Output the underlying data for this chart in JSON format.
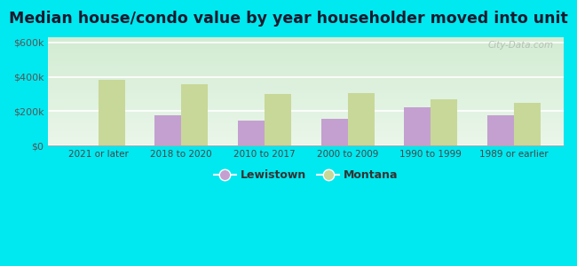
{
  "title": "Median house/condo value by year householder moved into unit",
  "categories": [
    "2021 or later",
    "2018 to 2020",
    "2010 to 2017",
    "2000 to 2009",
    "1990 to 1999",
    "1989 or earlier"
  ],
  "lewistown": [
    0,
    175000,
    145000,
    155000,
    225000,
    175000
  ],
  "montana": [
    385000,
    355000,
    300000,
    305000,
    270000,
    248000
  ],
  "lewistown_color": "#c4a0d0",
  "montana_color": "#c8d898",
  "background_outer": "#00e8f0",
  "background_inner": "#e2f2e2",
  "title_fontsize": 12.5,
  "yticks": [
    0,
    200000,
    400000,
    600000
  ],
  "ytick_labels": [
    "$0",
    "$200k",
    "$400k",
    "$600k"
  ],
  "ylim": [
    0,
    630000
  ],
  "bar_width": 0.32,
  "legend_lewistown": "Lewistown",
  "legend_montana": "Montana",
  "watermark": "City-Data.com"
}
